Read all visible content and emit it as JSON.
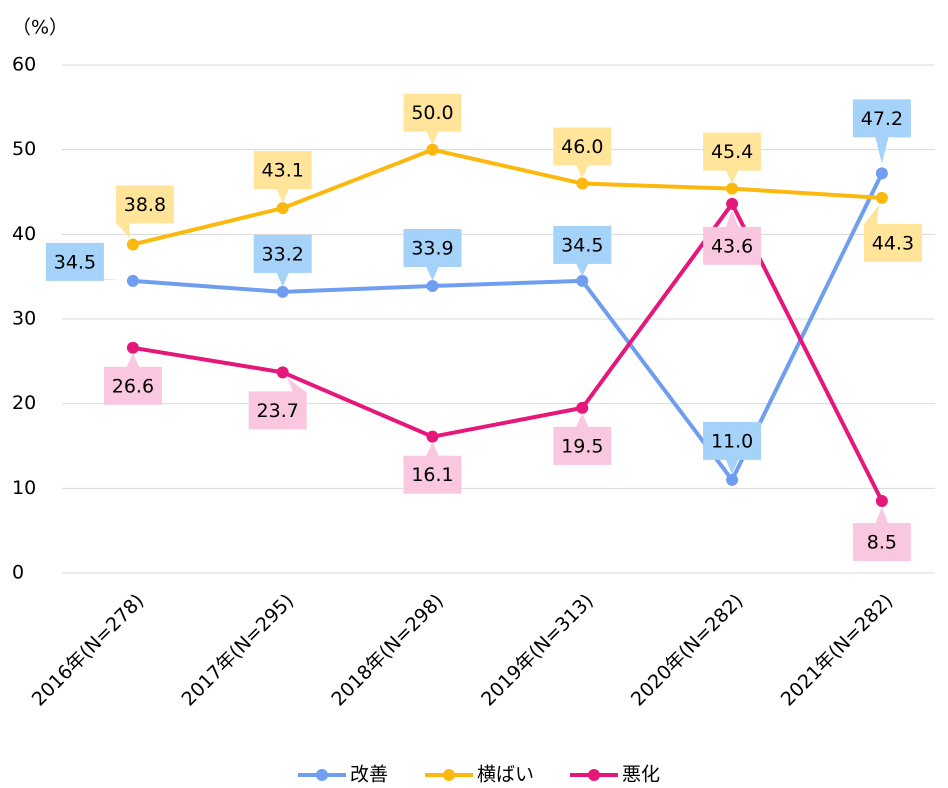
{
  "chart_data": {
    "type": "line",
    "y_label": "（%）",
    "categories": [
      "2016年(N=278)",
      "2017年(N=295)",
      "2018年(N=298)",
      "2019年(N=313)",
      "2020年(N=282)",
      "2021年(N=282)"
    ],
    "series": [
      {
        "name": "改善",
        "color": "#6f9ef0",
        "label_color": "#a5d2f8",
        "values": [
          34.5,
          33.2,
          33.9,
          34.5,
          11.0,
          47.2
        ],
        "value_labels": [
          "34.5",
          "33.2",
          "33.9",
          "34.5",
          "11.0",
          "47.2"
        ]
      },
      {
        "name": "横ばい",
        "color": "#fbb90f",
        "label_color": "#ffe49a",
        "values": [
          38.8,
          43.1,
          50.0,
          46.0,
          45.4,
          44.3
        ],
        "value_labels": [
          "38.8",
          "43.1",
          "50.0",
          "46.0",
          "45.4",
          "44.3"
        ]
      },
      {
        "name": "悪化",
        "color": "#e6177a",
        "label_color": "#f9c7df",
        "values": [
          26.6,
          23.7,
          16.1,
          19.5,
          43.6,
          8.5
        ],
        "value_labels": [
          "26.6",
          "23.7",
          "16.1",
          "19.5",
          "43.6",
          "8.5"
        ]
      }
    ],
    "ylim": [
      0,
      60
    ],
    "yticks": [
      0,
      10,
      20,
      30,
      40,
      50,
      60
    ],
    "grid": true,
    "legend": "bottom"
  }
}
